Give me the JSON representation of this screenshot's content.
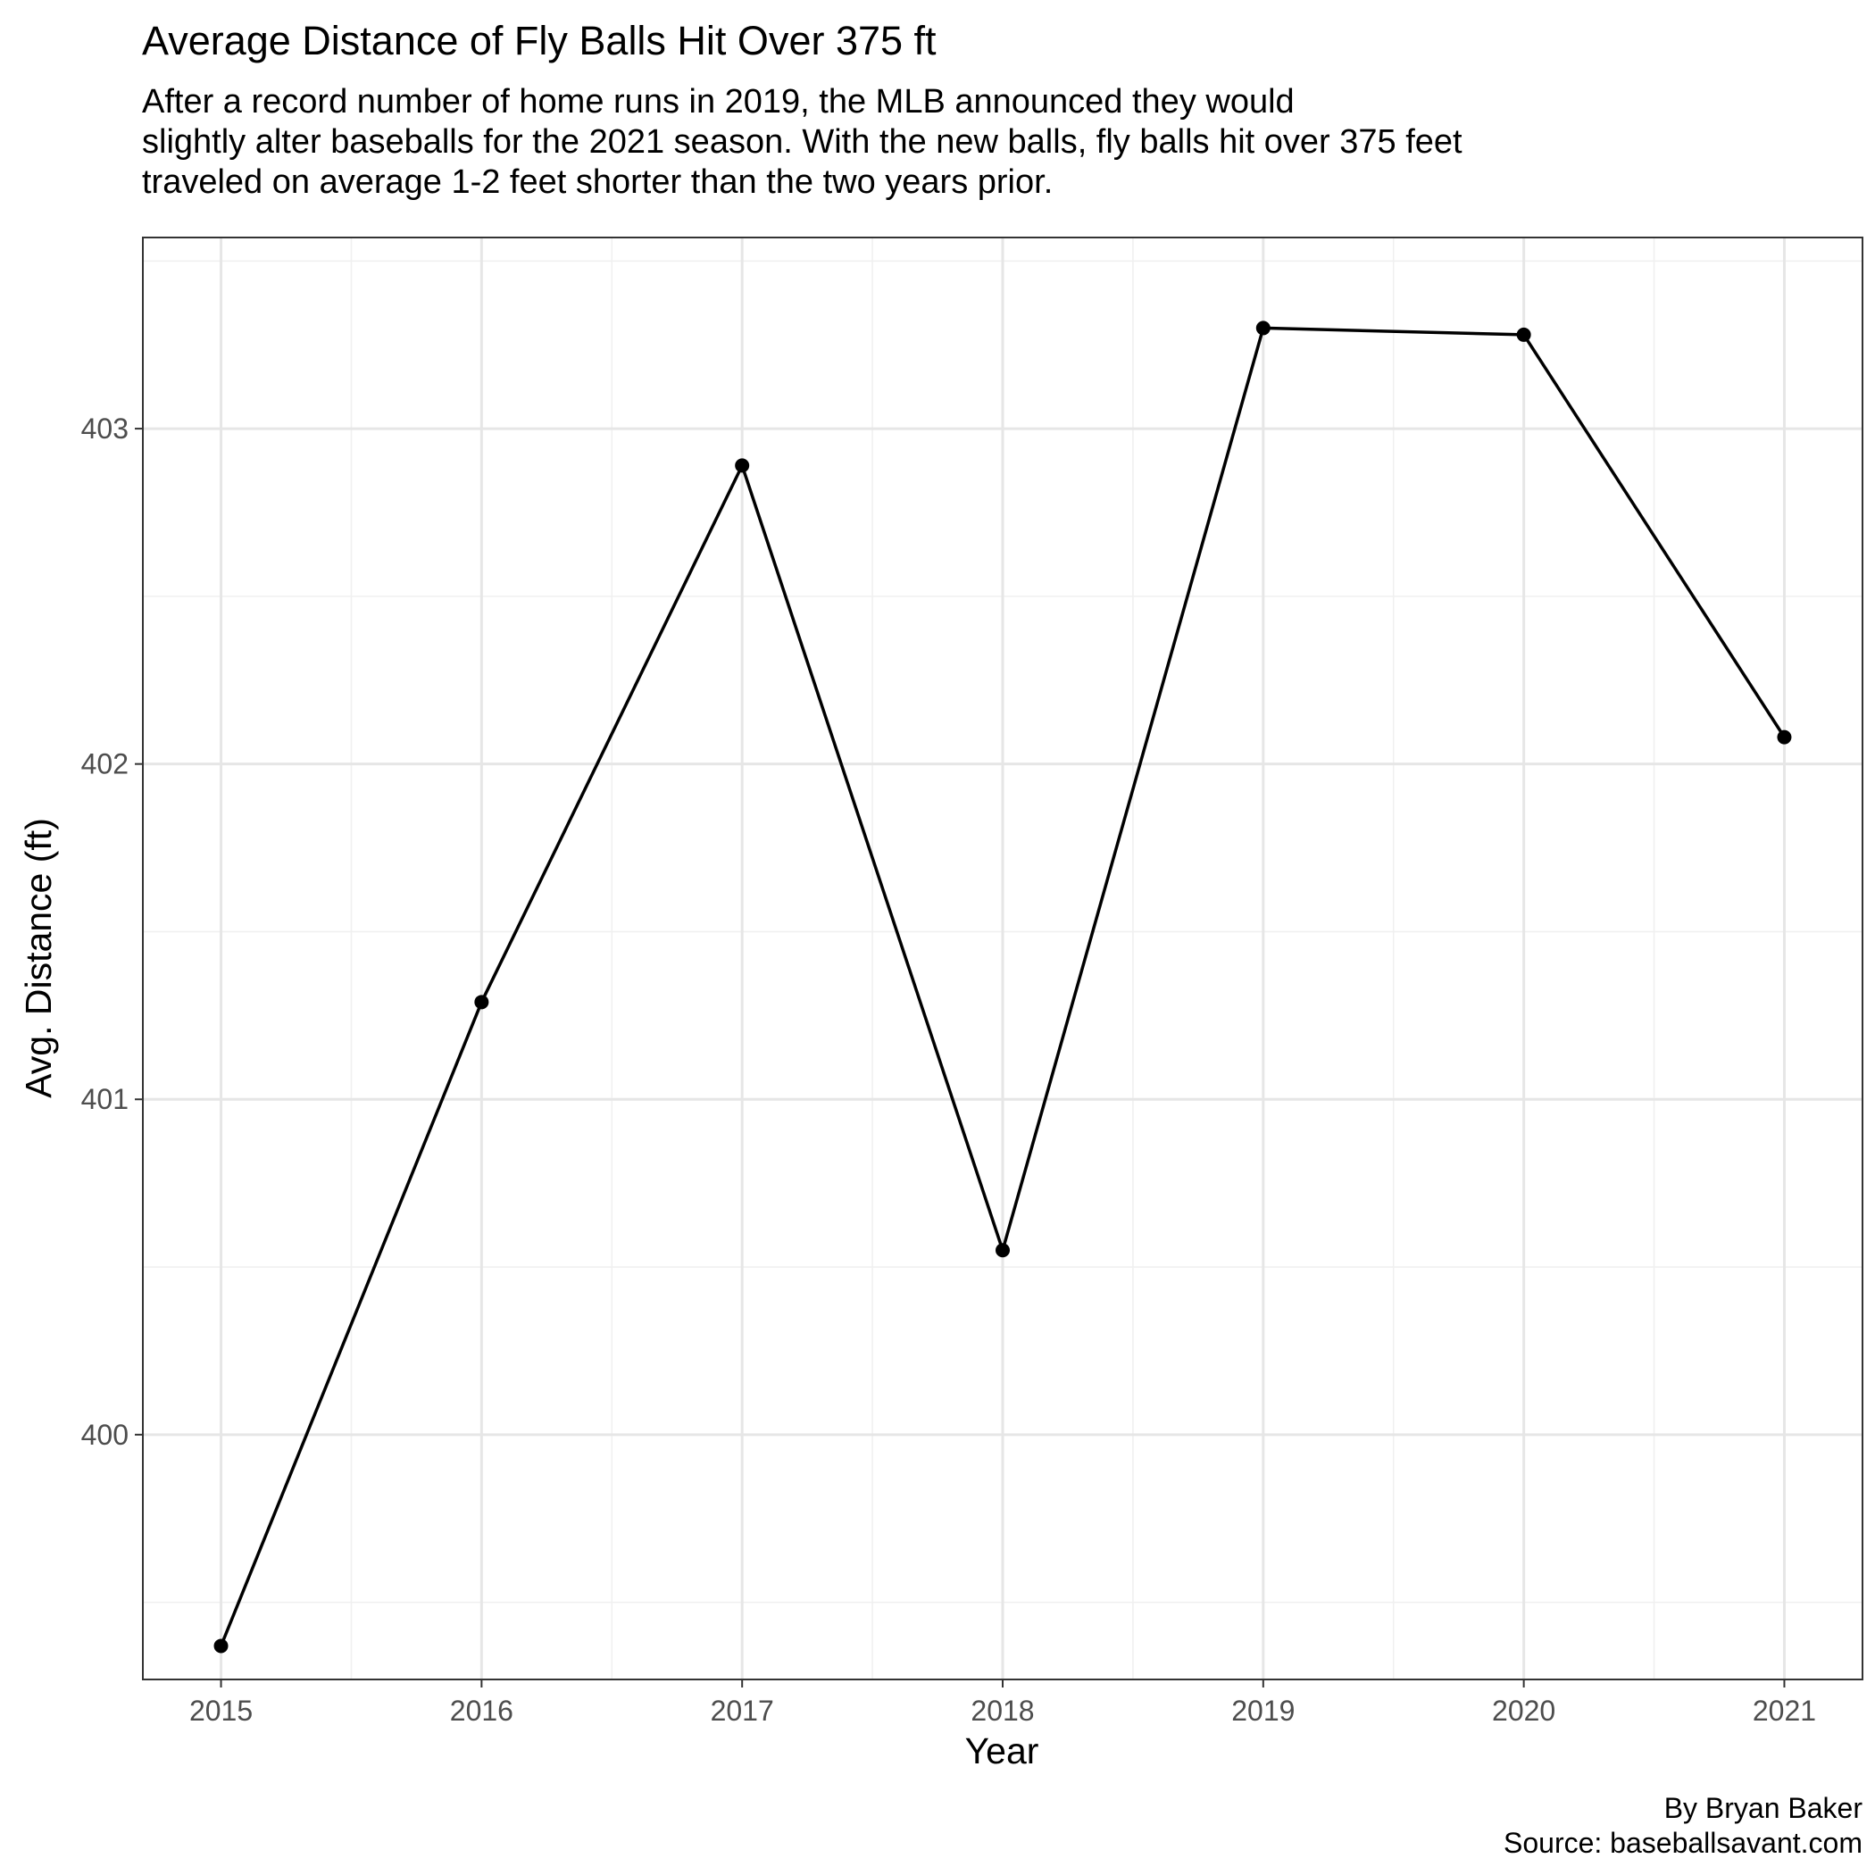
{
  "title": "Average Distance of Fly Balls Hit Over 375 ft",
  "subtitle_lines": [
    "After a record number of home runs in 2019, the MLB announced they would",
    "slightly alter baseballs for the 2021 season. With the new balls, fly balls hit over 375 feet",
    "traveled on average 1-2 feet shorter than the two years prior."
  ],
  "caption_lines": [
    "By Bryan Baker",
    "Source: baseballsavant.com"
  ],
  "colors": {
    "line": "#000000",
    "point": "#000000",
    "grid_major": "#e6e6e6",
    "grid_minor": "#f0f0f0",
    "panel_border": "#333333",
    "tick_text": "#4d4d4d"
  },
  "chart_data": {
    "type": "line",
    "x": [
      2015,
      2016,
      2017,
      2018,
      2019,
      2020,
      2021
    ],
    "series": [
      {
        "values": [
          399.37,
          401.29,
          402.89,
          400.55,
          403.3,
          403.28,
          402.08
        ]
      }
    ],
    "xlabel": "Year",
    "ylabel": "Avg. Distance (ft)",
    "xticks": [
      "2015",
      "2016",
      "2017",
      "2018",
      "2019",
      "2020",
      "2021"
    ],
    "yticks": [
      400,
      401,
      402,
      403
    ],
    "xlim": [
      2014.7,
      2021.3
    ],
    "ylim": [
      399.27,
      403.57
    ],
    "grid": true,
    "markers": true
  }
}
